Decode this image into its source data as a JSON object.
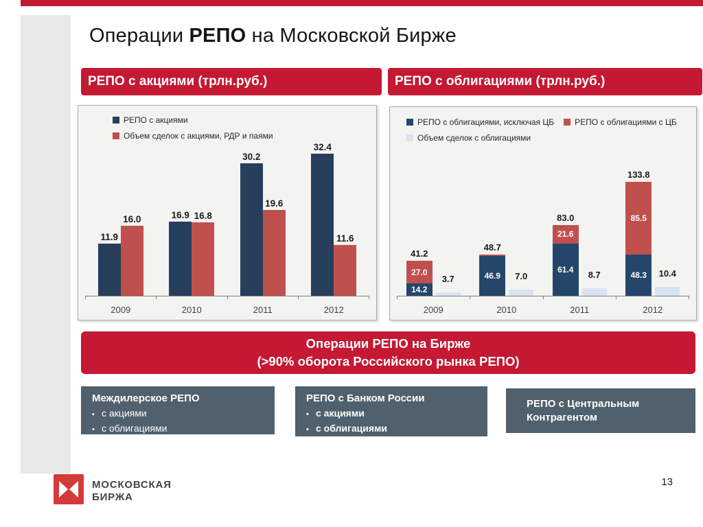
{
  "page": {
    "title_prefix": "Операции ",
    "title_bold": "РЕПО",
    "title_suffix": " на Московской Бирже"
  },
  "banners": {
    "left": "РЕПО с акциями (трлн.руб.)",
    "right": "РЕПО с облигациями (трлн.руб.)"
  },
  "chart_data": [
    {
      "type": "bar",
      "title": "РЕПО с акциями (трлн.руб.)",
      "categories": [
        "2009",
        "2010",
        "2011",
        "2012"
      ],
      "series": [
        {
          "name": "РЕПО с акциями",
          "color": "#273e5c",
          "values": [
            11.9,
            16.9,
            30.2,
            32.4
          ]
        },
        {
          "name": "Объем сделок с акциями, РДР и паями",
          "color": "#c0504d",
          "values": [
            16.0,
            16.8,
            19.6,
            11.6
          ]
        }
      ],
      "ylim": [
        0,
        34
      ],
      "grid": false,
      "legend_position": "top-left"
    },
    {
      "type": "bar-stacked",
      "title": "РЕПО с облигациями (трлн.руб.)",
      "categories": [
        "2009",
        "2010",
        "2011",
        "2012"
      ],
      "stack_series": [
        {
          "name": "РЕПО с облигациями, исключая ЦБ",
          "color": "#24466b",
          "values": [
            14.2,
            46.9,
            61.4,
            48.3
          ]
        },
        {
          "name": "РЕПО с облигациями с ЦБ",
          "color": "#c0504d",
          "values": [
            27.0,
            1.8,
            21.6,
            85.5
          ]
        }
      ],
      "stack_totals": [
        41.2,
        48.7,
        83.0,
        133.8
      ],
      "side_series": {
        "name": "Объем сделок с облигациями",
        "color": "#d9e4f1",
        "values": [
          3.7,
          7.0,
          8.7,
          10.4
        ]
      },
      "ylim": [
        0,
        170
      ],
      "grid": false,
      "legend_position": "top-left"
    }
  ],
  "summary_banner": {
    "line1": "Операции РЕПО на Бирже",
    "line2": "(>90% оборота Российского рынка РЕПО)"
  },
  "info_boxes": [
    {
      "title": "Междилерское РЕПО",
      "bullets": [
        {
          "marker": "▪",
          "text": "с акциями"
        },
        {
          "marker": "•",
          "text": "с облигациями"
        }
      ]
    },
    {
      "title": "РЕПО с Банком России",
      "bullets": [
        {
          "marker": "•",
          "text": "с акциями"
        },
        {
          "marker": "•",
          "text": "с облигациями"
        }
      ]
    },
    {
      "title": "РЕПО с Центральным Контрагентом",
      "bullets": []
    }
  ],
  "footer": {
    "logo_line1": "МОСКОВСКАЯ",
    "logo_line2": "БИРЖА",
    "page_number": "13"
  },
  "colors": {
    "accent_red": "#c41833",
    "logo_red": "#d43a3a",
    "navy": "#273e5c",
    "navy_light": "#24466b",
    "series_red": "#c0504d",
    "light_blue": "#d9e4f1",
    "info_box_gray": "#50606d",
    "side_strip_gray": "#e9e9e9"
  }
}
